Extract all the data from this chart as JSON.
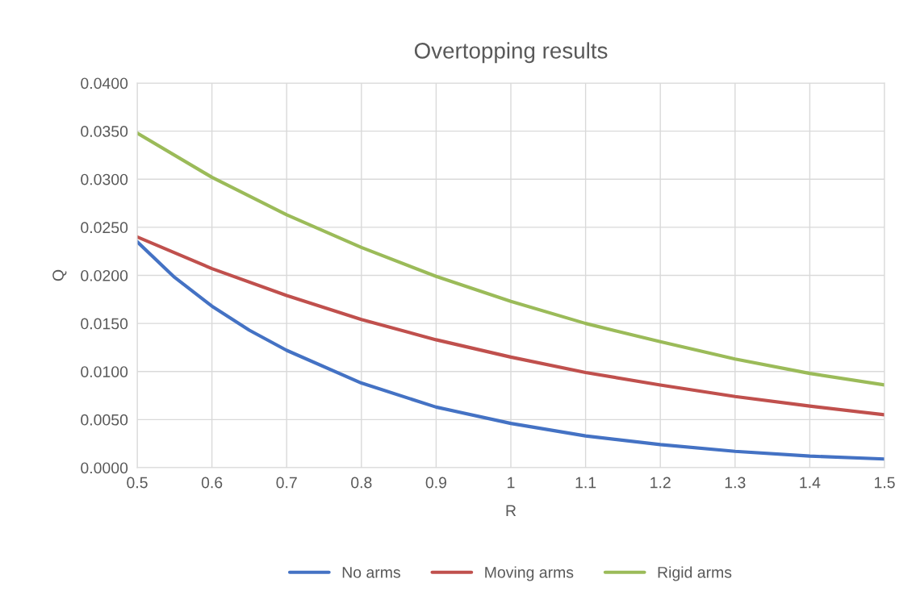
{
  "chart_data": {
    "type": "line",
    "title": "Overtopping results",
    "xlabel": "R",
    "ylabel": "Q",
    "xlim": [
      0.5,
      1.5
    ],
    "xticks": [
      0.5,
      0.6,
      0.7,
      0.8,
      0.9,
      1,
      1.1,
      1.2,
      1.3,
      1.4,
      1.5
    ],
    "ylim": [
      0,
      0.04
    ],
    "yticks": [
      {
        "value": 0,
        "label": "0.0000"
      },
      {
        "value": 0.005,
        "label": "0.0050"
      },
      {
        "value": 0.01,
        "label": "0.0100"
      },
      {
        "value": 0.015,
        "label": "0.0150"
      },
      {
        "value": 0.02,
        "label": "0.0200"
      },
      {
        "value": 0.025,
        "label": "0.0250"
      },
      {
        "value": 0.03,
        "label": "0.0300"
      },
      {
        "value": 0.035,
        "label": "0.0350"
      },
      {
        "value": 0.04,
        "label": "0.0400"
      }
    ],
    "grid": true,
    "legend": "bottom",
    "marker": "none",
    "line_style": "solid",
    "series": [
      {
        "name": "No arms",
        "color": "#4472c4",
        "x": [
          0.5,
          0.55,
          0.6,
          0.65,
          0.7,
          0.8,
          0.9,
          1.0,
          1.1,
          1.2,
          1.3,
          1.4,
          1.5
        ],
        "values": [
          0.0235,
          0.0198,
          0.0168,
          0.0143,
          0.0122,
          0.0088,
          0.0063,
          0.0046,
          0.0033,
          0.0024,
          0.0017,
          0.0012,
          0.0009
        ]
      },
      {
        "name": "Moving arms",
        "color": "#c0504d",
        "x": [
          0.5,
          0.6,
          0.7,
          0.8,
          0.9,
          1.0,
          1.1,
          1.2,
          1.3,
          1.4,
          1.5
        ],
        "values": [
          0.024,
          0.0207,
          0.0179,
          0.0154,
          0.0133,
          0.0115,
          0.0099,
          0.0086,
          0.0074,
          0.0064,
          0.0055
        ]
      },
      {
        "name": "Rigid arms",
        "color": "#9bbb59",
        "x": [
          0.5,
          0.6,
          0.7,
          0.8,
          0.9,
          1.0,
          1.1,
          1.2,
          1.3,
          1.4,
          1.5
        ],
        "values": [
          0.0348,
          0.0302,
          0.0263,
          0.0229,
          0.0199,
          0.0173,
          0.015,
          0.0131,
          0.0113,
          0.0098,
          0.0086
        ]
      }
    ]
  }
}
